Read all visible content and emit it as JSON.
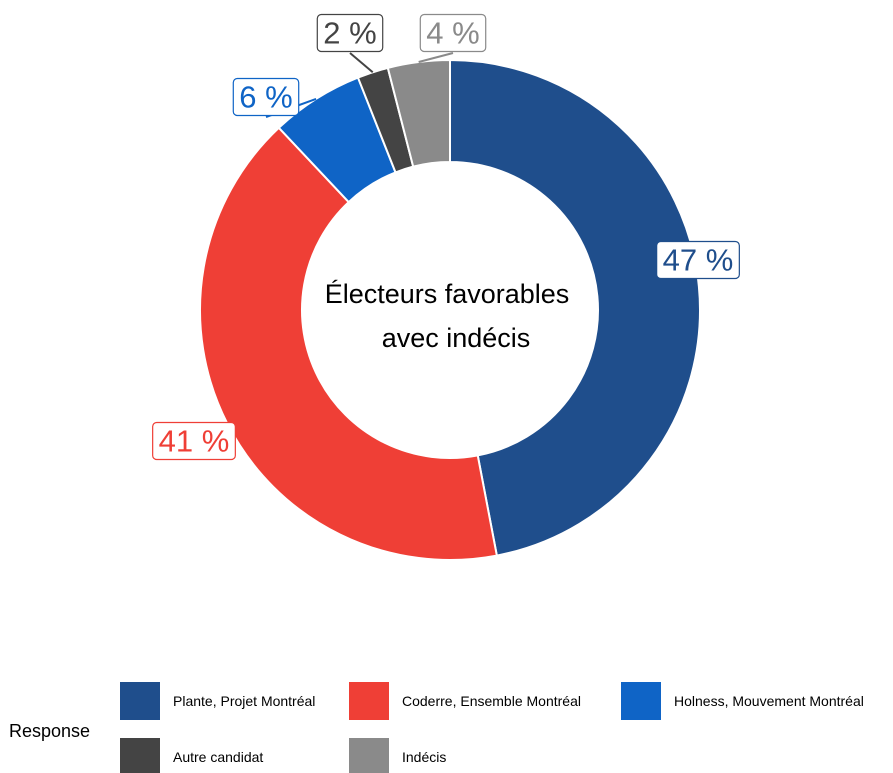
{
  "chart_data": {
    "type": "pie",
    "style": "donut",
    "center_title_lines": [
      "Électeurs favorables",
      "avec indécis"
    ],
    "legend_title": "Response",
    "legend_position": "bottom",
    "slices": [
      {
        "name": "Plante, Projet Montréal",
        "value": 47,
        "label": "47 %",
        "color": "#1F4E8C"
      },
      {
        "name": "Coderre, Ensemble Montréal",
        "value": 41,
        "label": "41 %",
        "color": "#EF3F36"
      },
      {
        "name": "Holness, Mouvement Montréal",
        "value": 6,
        "label": "6 %",
        "color": "#0F64C6"
      },
      {
        "name": "Autre candidat",
        "value": 2,
        "label": "2 %",
        "color": "#444444"
      },
      {
        "name": "Indécis",
        "value": 4,
        "label": "4 %",
        "color": "#8A8A8A"
      }
    ]
  }
}
